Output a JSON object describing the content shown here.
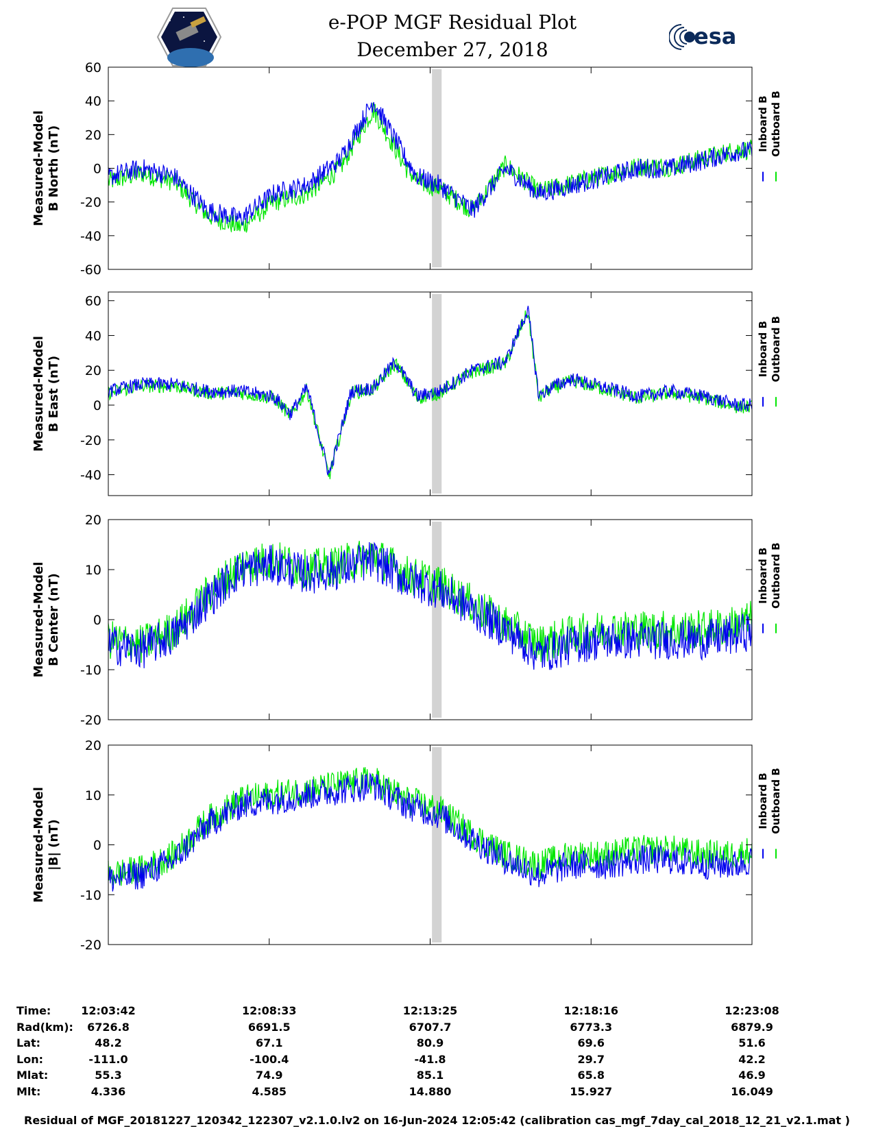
{
  "header": {
    "title": "e-POP MGF Residual Plot",
    "date": "December 27, 2018",
    "logo_left": "cassiope-mission-patch",
    "logo_right_text": "esa"
  },
  "colors": {
    "inboard": "#0000ee",
    "outboard": "#00e600",
    "gap_band": "#d3d3d3"
  },
  "chart_data": [
    {
      "type": "line",
      "title": "",
      "ylabel": [
        "Measured-Model",
        "B North (nT)"
      ],
      "xlabel": "",
      "xlim": [
        0,
        1166
      ],
      "ylim": [
        -60,
        60
      ],
      "yticks": [
        -60,
        -40,
        -20,
        0,
        20,
        40,
        60
      ],
      "grid": false,
      "legend": {
        "placement": "right",
        "entries": [
          "Inboard B",
          "Outboard B"
        ]
      },
      "series": [
        {
          "name": "Inboard B",
          "color": "#0000ee",
          "x": [
            0,
            60,
            120,
            180,
            240,
            300,
            360,
            420,
            480,
            540,
            560,
            600,
            660,
            720,
            780,
            840,
            900,
            960,
            1020,
            1080,
            1140,
            1166
          ],
          "values": [
            -5,
            0,
            -5,
            -25,
            -30,
            -15,
            -10,
            5,
            40,
            5,
            -5,
            -10,
            -25,
            0,
            -15,
            -10,
            -5,
            0,
            0,
            5,
            10,
            10
          ]
        },
        {
          "name": "Outboard B",
          "color": "#00e600",
          "x": [
            0,
            60,
            120,
            180,
            240,
            300,
            360,
            420,
            480,
            540,
            560,
            600,
            660,
            720,
            780,
            840,
            900,
            960,
            1020,
            1080,
            1140,
            1166
          ],
          "values": [
            -8,
            -3,
            -8,
            -28,
            -35,
            -20,
            -15,
            0,
            35,
            0,
            -8,
            -12,
            -25,
            2,
            -14,
            -9,
            -4,
            1,
            1,
            6,
            11,
            11
          ]
        }
      ],
      "gap_band_x": [
        590,
        610
      ]
    },
    {
      "type": "line",
      "title": "",
      "ylabel": [
        "Measured-Model",
        "B East (nT)"
      ],
      "xlabel": "",
      "xlim": [
        0,
        1166
      ],
      "ylim": [
        -52,
        65
      ],
      "yticks": [
        -40,
        -20,
        0,
        20,
        40,
        60
      ],
      "grid": false,
      "legend": {
        "placement": "right",
        "entries": [
          "Inboard B",
          "Outboard B"
        ]
      },
      "series": [
        {
          "name": "Inboard B",
          "color": "#0000ee",
          "x": [
            0,
            60,
            120,
            180,
            240,
            300,
            330,
            360,
            400,
            440,
            480,
            520,
            560,
            600,
            660,
            720,
            760,
            780,
            800,
            840,
            900,
            960,
            1020,
            1080,
            1140,
            1166
          ],
          "values": [
            8,
            12,
            12,
            8,
            8,
            5,
            -5,
            10,
            -40,
            8,
            10,
            25,
            5,
            8,
            20,
            25,
            55,
            5,
            10,
            15,
            10,
            5,
            8,
            5,
            0,
            0
          ]
        },
        {
          "name": "Outboard B",
          "color": "#00e600",
          "x": [
            0,
            60,
            120,
            180,
            240,
            300,
            330,
            360,
            400,
            440,
            480,
            520,
            560,
            600,
            660,
            720,
            760,
            780,
            800,
            840,
            900,
            960,
            1020,
            1080,
            1140,
            1166
          ],
          "values": [
            7,
            11,
            11,
            7,
            7,
            4,
            -6,
            9,
            -41,
            7,
            9,
            24,
            4,
            7,
            19,
            24,
            54,
            4,
            9,
            14,
            9,
            4,
            7,
            4,
            -1,
            -1
          ]
        }
      ],
      "gap_band_x": [
        590,
        610
      ]
    },
    {
      "type": "line",
      "title": "",
      "ylabel": [
        "Measured-Model",
        "B Center (nT)"
      ],
      "xlabel": "",
      "xlim": [
        0,
        1166
      ],
      "ylim": [
        -20,
        20
      ],
      "yticks": [
        -20,
        -10,
        0,
        10,
        20
      ],
      "grid": false,
      "legend": {
        "placement": "right",
        "entries": [
          "Inboard B",
          "Outboard B"
        ]
      },
      "series": [
        {
          "name": "Inboard B",
          "color": "#0000ee",
          "x": [
            0,
            60,
            120,
            180,
            240,
            300,
            360,
            420,
            480,
            540,
            600,
            660,
            720,
            780,
            840,
            900,
            960,
            1020,
            1080,
            1140,
            1166
          ],
          "values": [
            -5,
            -6,
            -3,
            4,
            10,
            11,
            9,
            10,
            12,
            8,
            6,
            2,
            -2,
            -7,
            -5,
            -4,
            -4,
            -4,
            -4,
            -3,
            -2
          ]
        },
        {
          "name": "Outboard B",
          "color": "#00e600",
          "x": [
            0,
            60,
            120,
            180,
            240,
            300,
            360,
            420,
            480,
            540,
            600,
            660,
            720,
            780,
            840,
            900,
            960,
            1020,
            1080,
            1140,
            1166
          ],
          "values": [
            -4,
            -5,
            -2,
            5,
            11,
            12,
            10,
            11,
            13,
            9,
            7,
            3,
            -1,
            -5,
            -3,
            -2,
            -2,
            -2,
            -2,
            -1,
            0
          ]
        }
      ],
      "gap_band_x": [
        590,
        610
      ]
    },
    {
      "type": "line",
      "title": "",
      "ylabel": [
        "Measured-Model",
        "|B| (nT)"
      ],
      "xlabel": "",
      "xlim": [
        0,
        1166
      ],
      "ylim": [
        -20,
        20
      ],
      "yticks": [
        -20,
        -10,
        0,
        10,
        20
      ],
      "grid": false,
      "legend": {
        "placement": "right",
        "entries": [
          "Inboard B",
          "Outboard B"
        ]
      },
      "series": [
        {
          "name": "Inboard B",
          "color": "#0000ee",
          "x": [
            0,
            60,
            120,
            180,
            240,
            300,
            360,
            420,
            480,
            540,
            600,
            660,
            720,
            780,
            840,
            900,
            960,
            1020,
            1080,
            1140,
            1166
          ],
          "values": [
            -7,
            -6,
            -3,
            4,
            8,
            9,
            10,
            11,
            12,
            8,
            6,
            1,
            -3,
            -6,
            -4,
            -4,
            -3,
            -3,
            -4,
            -4,
            -3
          ]
        },
        {
          "name": "Outboard B",
          "color": "#00e600",
          "x": [
            0,
            60,
            120,
            180,
            240,
            300,
            360,
            420,
            480,
            540,
            600,
            660,
            720,
            780,
            840,
            900,
            960,
            1020,
            1080,
            1140,
            1166
          ],
          "values": [
            -6,
            -5,
            -2,
            5,
            9,
            10,
            11,
            12,
            13,
            9,
            7,
            2,
            -2,
            -4,
            -2,
            -2,
            -1,
            -1,
            -2,
            -2,
            -1
          ]
        }
      ],
      "gap_band_x": [
        590,
        610
      ]
    }
  ],
  "ephemeris": {
    "labels": [
      "Time:",
      "Rad(km):",
      "Lat:",
      "Lon:",
      "Mlat:",
      "Mlt:"
    ],
    "columns": [
      [
        "12:03:42",
        "6726.8",
        "48.2",
        "-111.0",
        "55.3",
        "4.336"
      ],
      [
        "12:08:33",
        "6691.5",
        "67.1",
        "-100.4",
        "74.9",
        "4.585"
      ],
      [
        "12:13:25",
        "6707.7",
        "80.9",
        "-41.8",
        "85.1",
        "14.880"
      ],
      [
        "12:18:16",
        "6773.3",
        "69.6",
        "29.7",
        "65.8",
        "15.927"
      ],
      [
        "12:23:08",
        "6879.9",
        "51.6",
        "42.2",
        "46.9",
        "16.049"
      ]
    ]
  },
  "footer": "Residual of MGF_20181227_120342_122307_v2.1.0.lv2 on 16-Jun-2024 12:05:42 (calibration cas_mgf_7day_cal_2018_12_21_v2.1.mat )"
}
